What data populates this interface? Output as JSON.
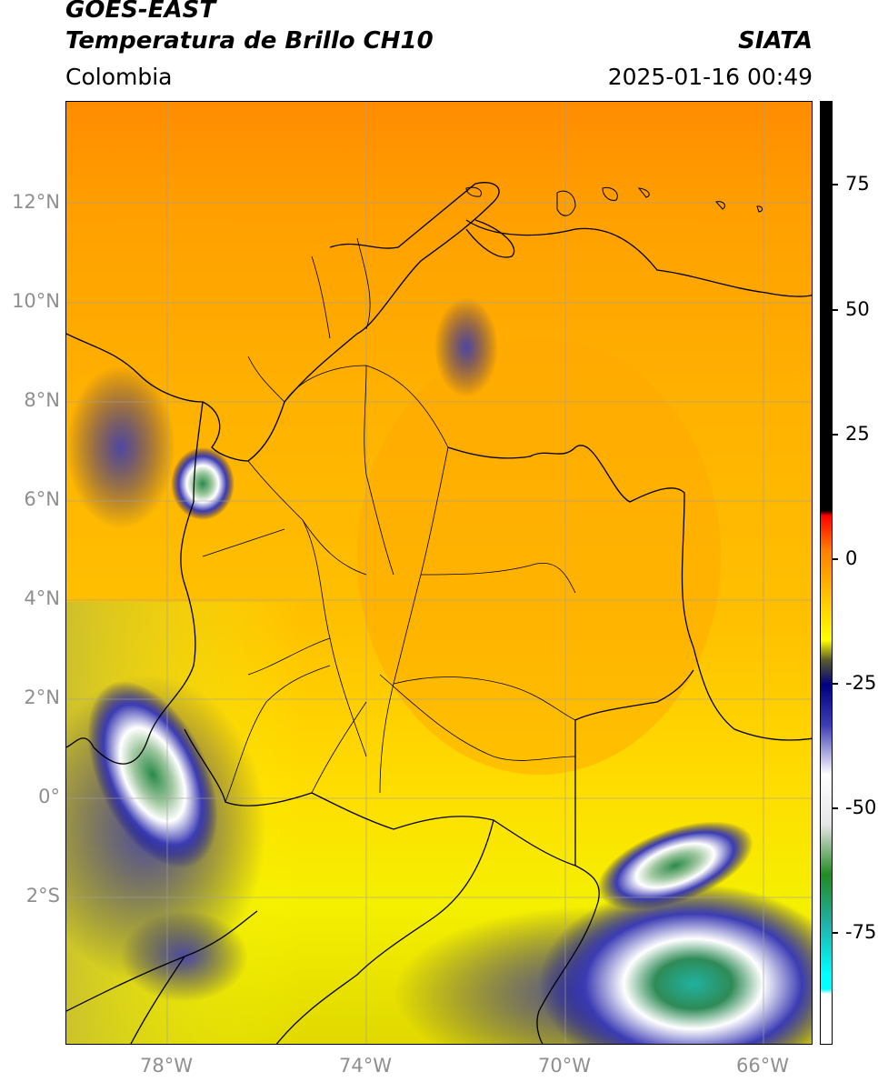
{
  "header": {
    "satellite": "GOES-EAST",
    "product": "Temperatura de Brillo CH10",
    "agency": "SIATA",
    "region": "Colombia",
    "datetime": "2025-01-16 00:49"
  },
  "map": {
    "lat_labels": [
      "12°N",
      "10°N",
      "8°N",
      "6°N",
      "4°N",
      "2°N",
      "0°",
      "2°S"
    ],
    "lon_labels": [
      "78°W",
      "74°W",
      "70°W",
      "66°W"
    ],
    "gridlines": true
  },
  "colorbar": {
    "labels": [
      "75",
      "50",
      "25",
      "0",
      "-25",
      "-50",
      "-75"
    ],
    "stops": [
      {
        "value": 90,
        "color": "#000000"
      },
      {
        "value": 8,
        "color": "#000000"
      },
      {
        "value": 7,
        "color": "#ff0000"
      },
      {
        "value": 0,
        "color": "#ff7f00"
      },
      {
        "value": -10,
        "color": "#ffc800"
      },
      {
        "value": -18,
        "color": "#ffff00"
      },
      {
        "value": -22,
        "color": "#5a5a2a"
      },
      {
        "value": -27,
        "color": "#000080"
      },
      {
        "value": -35,
        "color": "#3c3cb4"
      },
      {
        "value": -45,
        "color": "#ffffff"
      },
      {
        "value": -55,
        "color": "#e6e6e6"
      },
      {
        "value": -65,
        "color": "#228b22"
      },
      {
        "value": -75,
        "color": "#20b2aa"
      },
      {
        "value": -85,
        "color": "#00ffff"
      },
      {
        "value": -88,
        "color": "#00ffff"
      },
      {
        "value": -89,
        "color": "#ffffff"
      }
    ]
  }
}
